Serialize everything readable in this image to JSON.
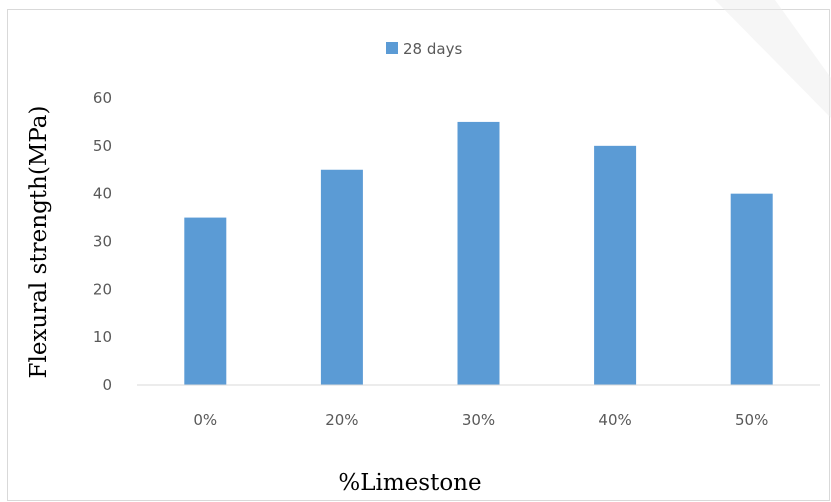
{
  "chart_data": {
    "type": "bar",
    "categories": [
      "0%",
      "20%",
      "30%",
      "40%",
      "50%"
    ],
    "series": [
      {
        "name": "28 days",
        "values": [
          35,
          45,
          55,
          50,
          40
        ],
        "color": "#5b9bd5"
      }
    ],
    "title": "",
    "xlabel": "%Limestone",
    "ylabel": "Flexural strength(MPa)",
    "ylim": [
      0,
      60
    ],
    "yticks": [
      "0",
      "10",
      "20",
      "30",
      "40",
      "50",
      "60"
    ],
    "grid": false,
    "legend_position": "top"
  },
  "colors": {
    "bar": "#5b9bd5",
    "axis": "#d9d9d9",
    "tick_text": "#595959"
  }
}
